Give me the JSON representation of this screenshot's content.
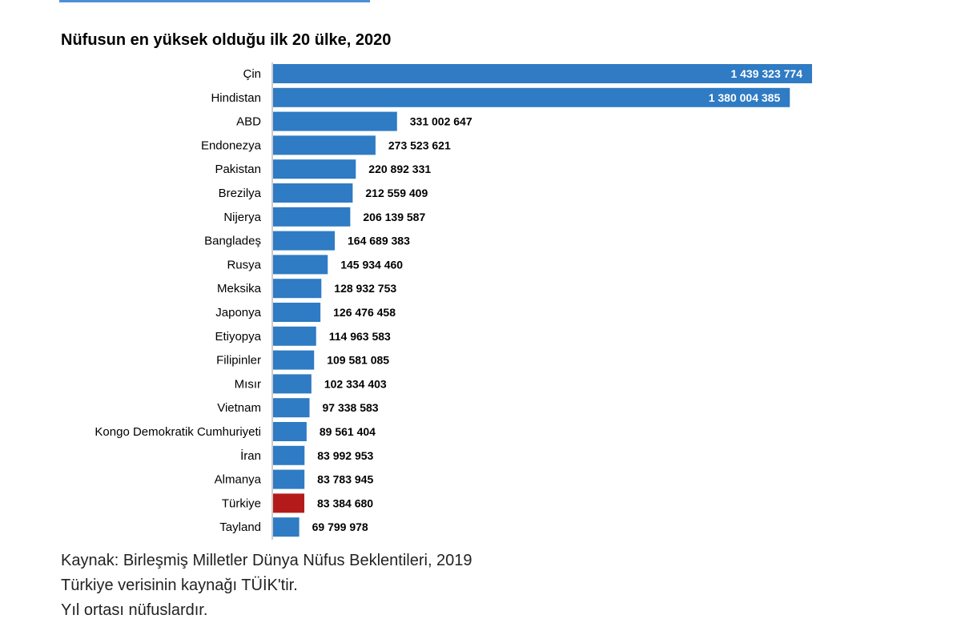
{
  "colors": {
    "bar": "#2f7bc4",
    "highlight": "#b31b1b",
    "axis": "#999999",
    "label_inside": "#ffffff",
    "label_outside": "#000000"
  },
  "chart_data": {
    "type": "bar",
    "orientation": "horizontal",
    "title": "Nüfusun en yüksek olduğu ilk 20 ülke, 2020",
    "xlabel": "",
    "ylabel": "",
    "xlim": [
      0,
      1500000000
    ],
    "grid": false,
    "highlight": "Türkiye",
    "categories": [
      "Çin",
      "Hindistan",
      "ABD",
      "Endonezya",
      "Pakistan",
      "Brezilya",
      "Nijerya",
      "Bangladeş",
      "Rusya",
      "Meksika",
      "Japonya",
      "Etiyopya",
      "Filipinler",
      "Mısır",
      "Vietnam",
      "Kongo Demokratik Cumhuriyeti",
      "İran",
      "Almanya",
      "Türkiye",
      "Tayland"
    ],
    "values": [
      1439323774,
      1380004385,
      331002647,
      273523621,
      220892331,
      212559409,
      206139587,
      164689383,
      145934460,
      128932753,
      126476458,
      114963583,
      109581085,
      102334403,
      97338583,
      89561404,
      83992953,
      83783945,
      83384680,
      69799978
    ],
    "value_labels": [
      "1 439 323 774",
      "1 380 004 385",
      "331 002 647",
      "273 523 621",
      "220 892 331",
      "212 559 409",
      "206 139 587",
      "164 689 383",
      "145 934 460",
      "128 932 753",
      "126 476 458",
      "114 963 583",
      "109 581 085",
      "102 334 403",
      "97 338 583",
      "89 561 404",
      "83 992 953",
      "83 783 945",
      "83 384 680",
      "69 799 978"
    ]
  },
  "notes": {
    "source": "Kaynak: Birleşmiş Milletler Dünya Nüfus Beklentileri, 2019",
    "turkey_source": "Türkiye verisinin kaynağı TÜİK'tir.",
    "midyear": "Yıl ortası nüfuslardır."
  }
}
